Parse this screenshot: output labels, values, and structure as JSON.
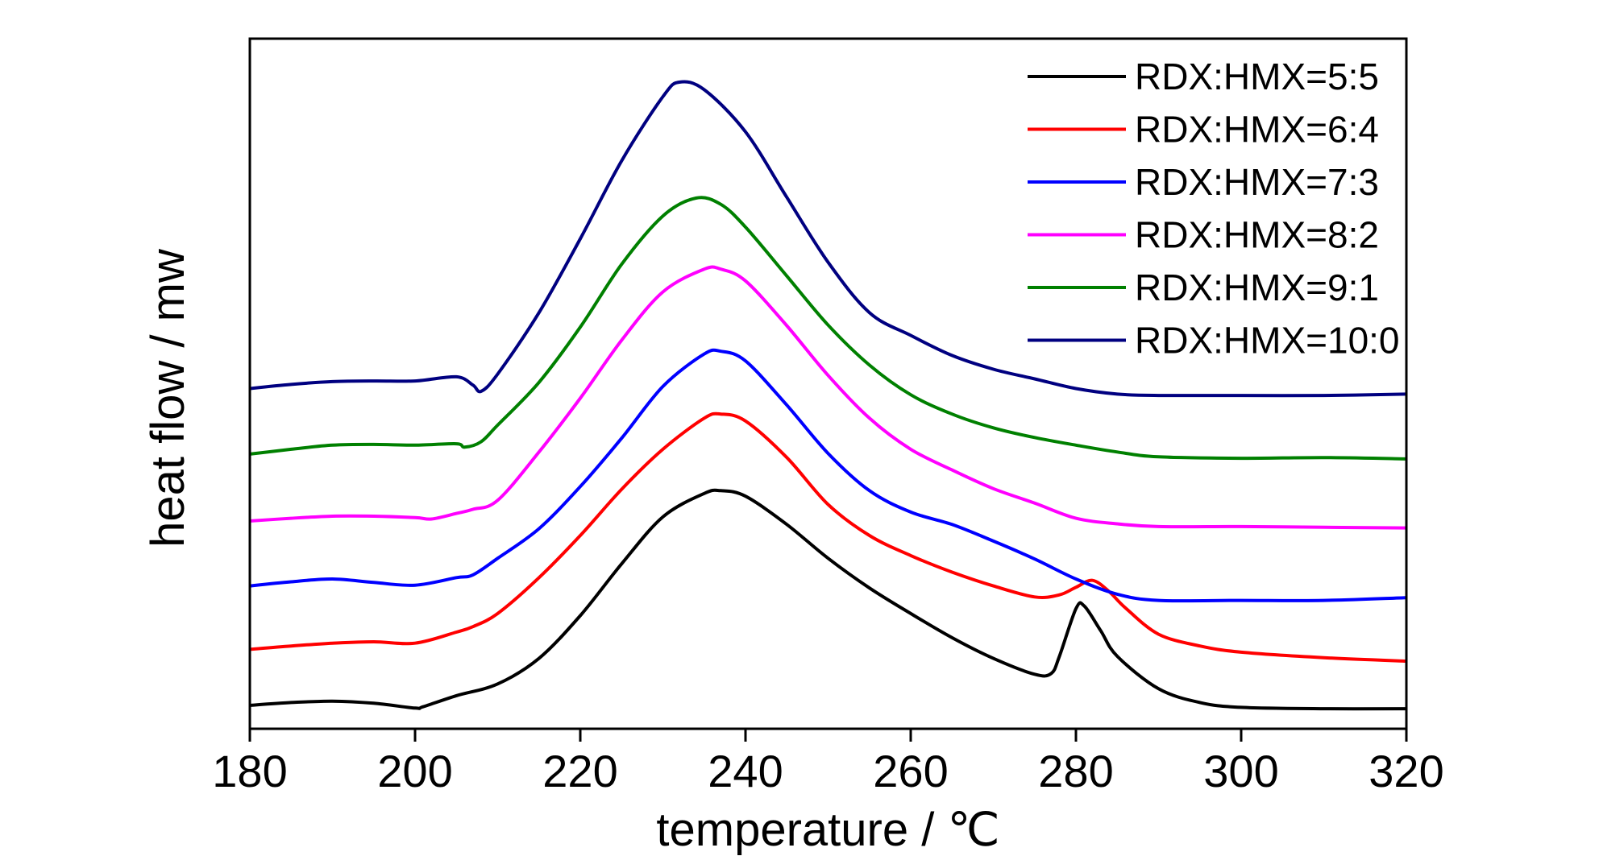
{
  "chart_data": {
    "type": "line",
    "title": "",
    "xlabel": "temperature / ℃",
    "ylabel": "heat flow / mw",
    "xlim": [
      180,
      320
    ],
    "ylim": [
      0,
      100
    ],
    "xticks": [
      180,
      200,
      220,
      240,
      260,
      280,
      300,
      320
    ],
    "xtick_labels": [
      "180",
      "200",
      "220",
      "240",
      "260",
      "280",
      "300",
      "320"
    ],
    "y_tick_labels_shown": false,
    "grid": false,
    "legend_position": "top-right",
    "series": [
      {
        "name": "RDX:HMX=5:5",
        "color": "#000000",
        "points": [
          [
            180,
            3.4
          ],
          [
            185,
            3.8
          ],
          [
            190,
            4.0
          ],
          [
            195,
            3.7
          ],
          [
            200,
            3.0
          ],
          [
            201,
            3.2
          ],
          [
            205,
            4.8
          ],
          [
            210,
            6.5
          ],
          [
            215,
            10.2
          ],
          [
            220,
            16.4
          ],
          [
            225,
            23.9
          ],
          [
            230,
            30.7
          ],
          [
            235,
            34.1
          ],
          [
            237,
            34.5
          ],
          [
            240,
            33.7
          ],
          [
            245,
            29.6
          ],
          [
            250,
            24.7
          ],
          [
            255,
            20.4
          ],
          [
            260,
            16.7
          ],
          [
            265,
            13.2
          ],
          [
            270,
            10.2
          ],
          [
            275,
            7.9
          ],
          [
            277,
            8.0
          ],
          [
            278,
            10.5
          ],
          [
            280,
            17.4
          ],
          [
            281,
            17.8
          ],
          [
            283,
            14.2
          ],
          [
            285,
            10.5
          ],
          [
            290,
            5.8
          ],
          [
            295,
            3.8
          ],
          [
            300,
            3.1
          ],
          [
            310,
            2.9
          ],
          [
            320,
            2.9
          ]
        ]
      },
      {
        "name": "RDX:HMX=6:4",
        "color": "#ff0000",
        "points": [
          [
            180,
            11.5
          ],
          [
            185,
            12.0
          ],
          [
            190,
            12.4
          ],
          [
            195,
            12.6
          ],
          [
            200,
            12.4
          ],
          [
            205,
            14.0
          ],
          [
            207,
            14.8
          ],
          [
            210,
            16.7
          ],
          [
            215,
            21.9
          ],
          [
            220,
            28.0
          ],
          [
            225,
            34.7
          ],
          [
            230,
            40.5
          ],
          [
            235,
            45.0
          ],
          [
            237,
            45.6
          ],
          [
            240,
            44.6
          ],
          [
            245,
            39.3
          ],
          [
            250,
            32.5
          ],
          [
            255,
            28.0
          ],
          [
            260,
            25.1
          ],
          [
            265,
            22.7
          ],
          [
            270,
            20.7
          ],
          [
            275,
            19.1
          ],
          [
            278,
            19.4
          ],
          [
            280,
            20.5
          ],
          [
            282,
            21.5
          ],
          [
            284,
            19.9
          ],
          [
            286,
            17.5
          ],
          [
            290,
            13.7
          ],
          [
            295,
            12.0
          ],
          [
            300,
            11.1
          ],
          [
            310,
            10.3
          ],
          [
            320,
            9.8
          ]
        ]
      },
      {
        "name": "RDX:HMX=7:3",
        "color": "#0000ff",
        "points": [
          [
            180,
            20.7
          ],
          [
            185,
            21.3
          ],
          [
            190,
            21.7
          ],
          [
            195,
            21.2
          ],
          [
            200,
            20.8
          ],
          [
            205,
            21.9
          ],
          [
            207,
            22.3
          ],
          [
            210,
            24.7
          ],
          [
            215,
            29.0
          ],
          [
            220,
            35.1
          ],
          [
            225,
            42.1
          ],
          [
            230,
            49.6
          ],
          [
            235,
            54.3
          ],
          [
            237,
            54.7
          ],
          [
            240,
            53.3
          ],
          [
            245,
            46.9
          ],
          [
            250,
            39.9
          ],
          [
            255,
            34.5
          ],
          [
            260,
            31.4
          ],
          [
            265,
            29.6
          ],
          [
            270,
            27.2
          ],
          [
            275,
            24.6
          ],
          [
            280,
            21.7
          ],
          [
            285,
            19.5
          ],
          [
            290,
            18.6
          ],
          [
            300,
            18.6
          ],
          [
            310,
            18.6
          ],
          [
            320,
            19.0
          ]
        ]
      },
      {
        "name": "RDX:HMX=8:2",
        "color": "#ff00ff",
        "points": [
          [
            180,
            30.1
          ],
          [
            185,
            30.5
          ],
          [
            190,
            30.8
          ],
          [
            195,
            30.8
          ],
          [
            200,
            30.6
          ],
          [
            202,
            30.4
          ],
          [
            205,
            31.2
          ],
          [
            207,
            31.8
          ],
          [
            210,
            33.1
          ],
          [
            215,
            40.1
          ],
          [
            220,
            47.9
          ],
          [
            225,
            56.3
          ],
          [
            230,
            63.3
          ],
          [
            235,
            66.6
          ],
          [
            237,
            66.6
          ],
          [
            240,
            64.9
          ],
          [
            245,
            58.4
          ],
          [
            250,
            51.2
          ],
          [
            255,
            45.0
          ],
          [
            260,
            40.5
          ],
          [
            265,
            37.5
          ],
          [
            270,
            34.8
          ],
          [
            275,
            32.7
          ],
          [
            280,
            30.5
          ],
          [
            285,
            29.7
          ],
          [
            290,
            29.3
          ],
          [
            300,
            29.3
          ],
          [
            310,
            29.2
          ],
          [
            320,
            29.1
          ]
        ]
      },
      {
        "name": "RDX:HMX=9:1",
        "color": "#008000",
        "points": [
          [
            180,
            39.8
          ],
          [
            185,
            40.5
          ],
          [
            190,
            41.1
          ],
          [
            195,
            41.2
          ],
          [
            200,
            41.1
          ],
          [
            205,
            41.3
          ],
          [
            206,
            40.8
          ],
          [
            208,
            41.6
          ],
          [
            210,
            44.0
          ],
          [
            215,
            50.2
          ],
          [
            220,
            58.2
          ],
          [
            225,
            67.3
          ],
          [
            230,
            74.3
          ],
          [
            234,
            76.9
          ],
          [
            237,
            76.0
          ],
          [
            240,
            72.7
          ],
          [
            245,
            65.6
          ],
          [
            250,
            58.5
          ],
          [
            255,
            52.7
          ],
          [
            260,
            48.4
          ],
          [
            265,
            45.6
          ],
          [
            270,
            43.6
          ],
          [
            275,
            42.2
          ],
          [
            280,
            41.1
          ],
          [
            285,
            40.1
          ],
          [
            290,
            39.4
          ],
          [
            300,
            39.2
          ],
          [
            310,
            39.3
          ],
          [
            320,
            39.1
          ]
        ]
      },
      {
        "name": "RDX:HMX=10:0",
        "color": "#000080",
        "points": [
          [
            180,
            49.3
          ],
          [
            185,
            49.9
          ],
          [
            190,
            50.3
          ],
          [
            195,
            50.4
          ],
          [
            200,
            50.4
          ],
          [
            205,
            51.0
          ],
          [
            207,
            49.8
          ],
          [
            208,
            48.9
          ],
          [
            210,
            51.4
          ],
          [
            215,
            60.3
          ],
          [
            220,
            71.0
          ],
          [
            225,
            82.3
          ],
          [
            230,
            91.6
          ],
          [
            232,
            93.7
          ],
          [
            235,
            92.6
          ],
          [
            240,
            86.5
          ],
          [
            245,
            77.0
          ],
          [
            250,
            67.6
          ],
          [
            255,
            60.3
          ],
          [
            260,
            57.0
          ],
          [
            265,
            54.1
          ],
          [
            270,
            52.1
          ],
          [
            275,
            50.7
          ],
          [
            280,
            49.3
          ],
          [
            285,
            48.5
          ],
          [
            290,
            48.3
          ],
          [
            300,
            48.3
          ],
          [
            310,
            48.3
          ],
          [
            320,
            48.5
          ]
        ]
      }
    ]
  }
}
